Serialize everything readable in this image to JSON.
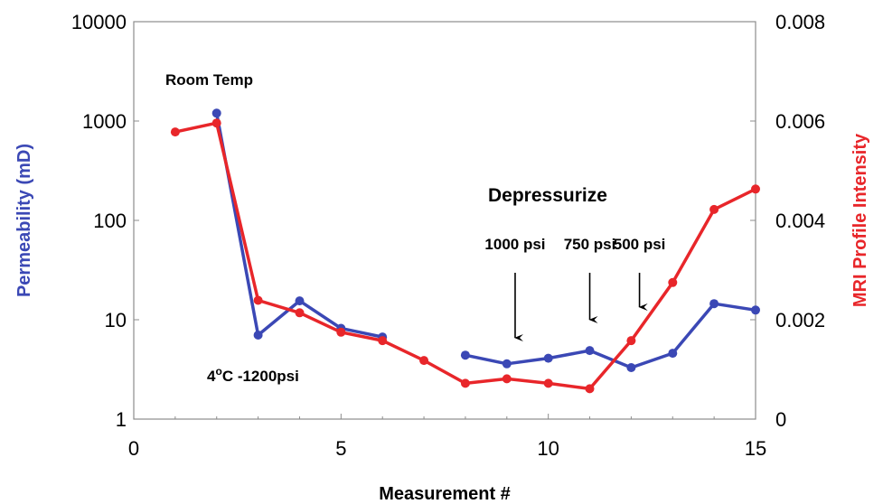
{
  "chart_data": {
    "type": "line",
    "title": "",
    "xlabel": "Measurement #",
    "y_left_label": "Permeability (mD)",
    "y_right_label": "MRI Profile  Intensity",
    "x_range": [
      0,
      15
    ],
    "x_ticks": [
      "0",
      "5",
      "10",
      "15"
    ],
    "y_left_scale": "log",
    "y_left_range": [
      1,
      10000
    ],
    "y_left_ticks": [
      "1",
      "10",
      "100",
      "1000",
      "10000"
    ],
    "y_right_range": [
      0,
      0.008
    ],
    "y_right_ticks": [
      "0",
      "0.002",
      "0.004",
      "0.006",
      "0.008"
    ],
    "grid": false,
    "colors": {
      "permeability": "#3b48b5",
      "mri": "#e8262a",
      "left_axis_title": "#3b48b5",
      "right_axis_title": "#e8262a"
    },
    "series": [
      {
        "axis": "left",
        "color_key": "permeability",
        "segments": [
          {
            "x": [
              2,
              3,
              4,
              5,
              6
            ],
            "y": [
              1200,
              7,
              15.5,
              8.2,
              6.7
            ]
          },
          {
            "x": [
              8,
              9,
              10,
              11,
              12,
              13,
              14,
              15
            ],
            "y": [
              4.4,
              3.6,
              4.1,
              4.9,
              3.3,
              4.6,
              14.5,
              12.5
            ]
          }
        ]
      },
      {
        "axis": "right",
        "color_key": "mri",
        "segments": [
          {
            "x": [
              1,
              2,
              3,
              4,
              5,
              6,
              7,
              8,
              9,
              10,
              11,
              12,
              13,
              14,
              15
            ],
            "y": [
              0.00578,
              0.00596,
              0.00239,
              0.00214,
              0.00175,
              0.00158,
              0.00118,
              0.00072,
              0.00081,
              0.00072,
              0.00061,
              0.00158,
              0.00275,
              0.00422,
              0.00463
            ]
          }
        ]
      }
    ],
    "annotations": {
      "room_temp": "Room Temp",
      "cold_base": "4",
      "cold_sup": "o",
      "cold_rest": "C -1200psi",
      "depressurize": "Depressurize",
      "arrows": [
        {
          "label": "1000 psi",
          "x": 9.2
        },
        {
          "label": "750 psi",
          "x": 11.0
        },
        {
          "label": "500 psi",
          "x": 12.2
        }
      ]
    }
  }
}
